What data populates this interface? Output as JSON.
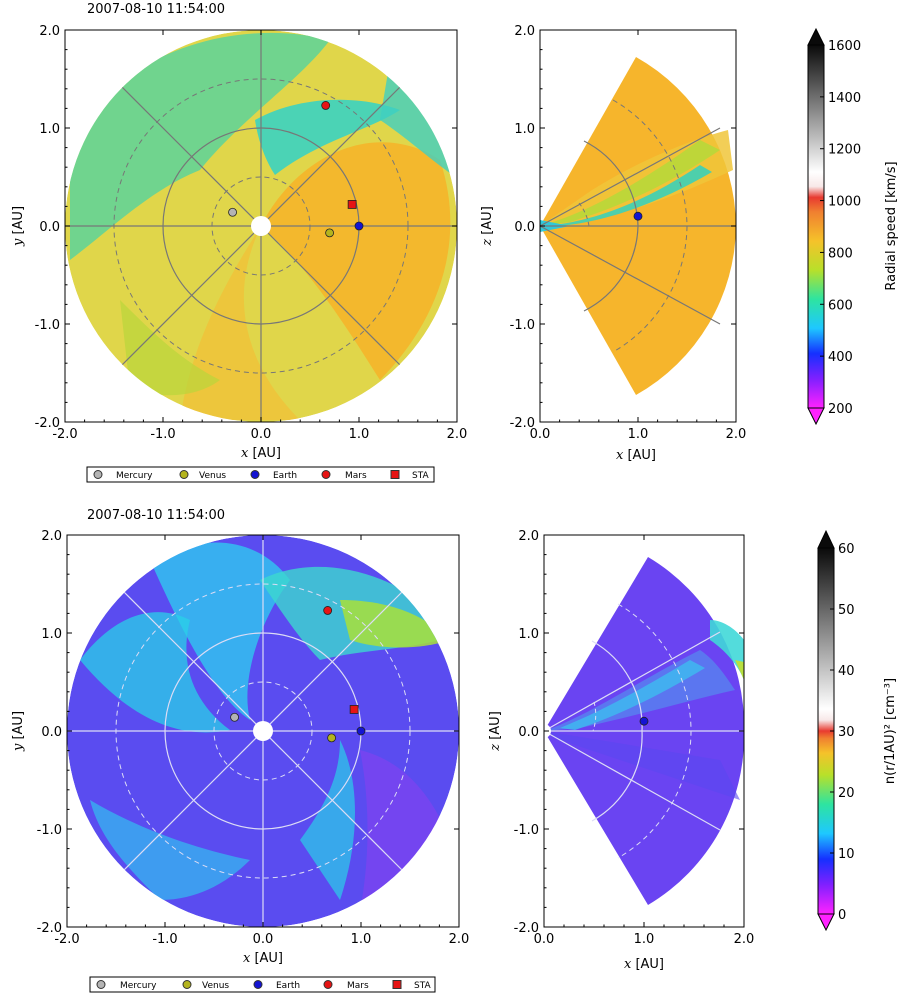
{
  "chart_data": [
    {
      "panel": "speed-ecliptic",
      "type": "heatmap",
      "title": "2007-08-10 11:54:00",
      "xlabel_var": "x",
      "xlabel_unit": "[AU]",
      "ylabel_var": "y",
      "ylabel_unit": "[AU]",
      "xlim": [
        -2.0,
        2.0
      ],
      "ylim": [
        -2.0,
        2.0
      ],
      "xticks": [
        "-2.0",
        "-1.0",
        "0.0",
        "1.0",
        "2.0"
      ],
      "yticks": [
        "2.0",
        "1.0",
        "0.0",
        "-1.0",
        "-2.0"
      ],
      "bodies": [
        {
          "name": "Mercury",
          "x": -0.29,
          "y": 0.14,
          "marker": "circle",
          "color": "#b4b4b4"
        },
        {
          "name": "Venus",
          "x": 0.7,
          "y": -0.07,
          "marker": "circle",
          "color": "#b4b41e"
        },
        {
          "name": "Earth",
          "x": 1.0,
          "y": 0.0,
          "marker": "circle",
          "color": "#1414d2"
        },
        {
          "name": "Mars",
          "x": 0.66,
          "y": 1.23,
          "marker": "circle",
          "color": "#e61414"
        },
        {
          "name": "STA",
          "x": 0.93,
          "y": 0.22,
          "marker": "square",
          "color": "#e61414"
        }
      ]
    },
    {
      "panel": "speed-meridional",
      "type": "heatmap",
      "xlabel_var": "x",
      "xlabel_unit": "[AU]",
      "ylabel_var": "z",
      "ylabel_unit": "[AU]",
      "xlim": [
        0.0,
        2.0
      ],
      "ylim": [
        -2.0,
        2.0
      ],
      "xticks": [
        "0.0",
        "1.0",
        "2.0"
      ],
      "yticks": [
        "2.0",
        "1.0",
        "0.0",
        "-1.0",
        "-2.0"
      ],
      "bodies": [
        {
          "name": "Earth",
          "x": 1.0,
          "z": 0.1,
          "color": "#1414d2"
        }
      ]
    },
    {
      "panel": "speed-colorbar",
      "type": "colorbar",
      "label": "Radial speed [km/s]",
      "range": [
        200,
        1600
      ],
      "ticks": [
        "1600",
        "1400",
        "1200",
        "1000",
        "800",
        "600",
        "400",
        "200"
      ]
    },
    {
      "panel": "density-ecliptic",
      "type": "heatmap",
      "title": "2007-08-10 11:54:00",
      "xlabel_var": "x",
      "xlabel_unit": "[AU]",
      "ylabel_var": "y",
      "ylabel_unit": "[AU]",
      "xlim": [
        -2.0,
        2.0
      ],
      "ylim": [
        -2.0,
        2.0
      ],
      "xticks": [
        "-2.0",
        "-1.0",
        "0.0",
        "1.0",
        "2.0"
      ],
      "yticks": [
        "2.0",
        "1.0",
        "0.0",
        "-1.0",
        "-2.0"
      ],
      "bodies": [
        {
          "name": "Mercury",
          "x": -0.29,
          "y": 0.14,
          "marker": "circle",
          "color": "#b4b4b4"
        },
        {
          "name": "Venus",
          "x": 0.7,
          "y": -0.07,
          "marker": "circle",
          "color": "#b4b41e"
        },
        {
          "name": "Earth",
          "x": 1.0,
          "y": 0.0,
          "marker": "circle",
          "color": "#1414d2"
        },
        {
          "name": "Mars",
          "x": 0.66,
          "y": 1.23,
          "marker": "circle",
          "color": "#e61414"
        },
        {
          "name": "STA",
          "x": 0.93,
          "y": 0.22,
          "marker": "square",
          "color": "#e61414"
        }
      ]
    },
    {
      "panel": "density-meridional",
      "type": "heatmap",
      "xlabel_var": "x",
      "xlabel_unit": "[AU]",
      "ylabel_var": "z",
      "ylabel_unit": "[AU]",
      "xlim": [
        0.0,
        2.0
      ],
      "ylim": [
        -2.0,
        2.0
      ],
      "xticks": [
        "0.0",
        "1.0",
        "2.0"
      ],
      "yticks": [
        "2.0",
        "1.0",
        "0.0",
        "-1.0",
        "-2.0"
      ],
      "bodies": [
        {
          "name": "Earth",
          "x": 1.0,
          "z": 0.1,
          "color": "#1414d2"
        }
      ]
    },
    {
      "panel": "density-colorbar",
      "type": "colorbar",
      "label": "n(r/1AU)² [cm⁻³]",
      "range": [
        0,
        60
      ],
      "ticks": [
        "60",
        "50",
        "40",
        "30",
        "20",
        "10",
        "0"
      ]
    }
  ],
  "legend": {
    "entries": [
      "Mercury",
      "Venus",
      "Earth",
      "Mars",
      "STA"
    ]
  },
  "colors": {
    "speed_background": "#e0d64a",
    "speed_fast": "#f5b52a",
    "speed_slow": "#3ccfb0",
    "density_background": "#5a4cf0",
    "density_high": "#2ee0e0",
    "density_mid": "#a8e03a",
    "sun": "#ffffff"
  }
}
